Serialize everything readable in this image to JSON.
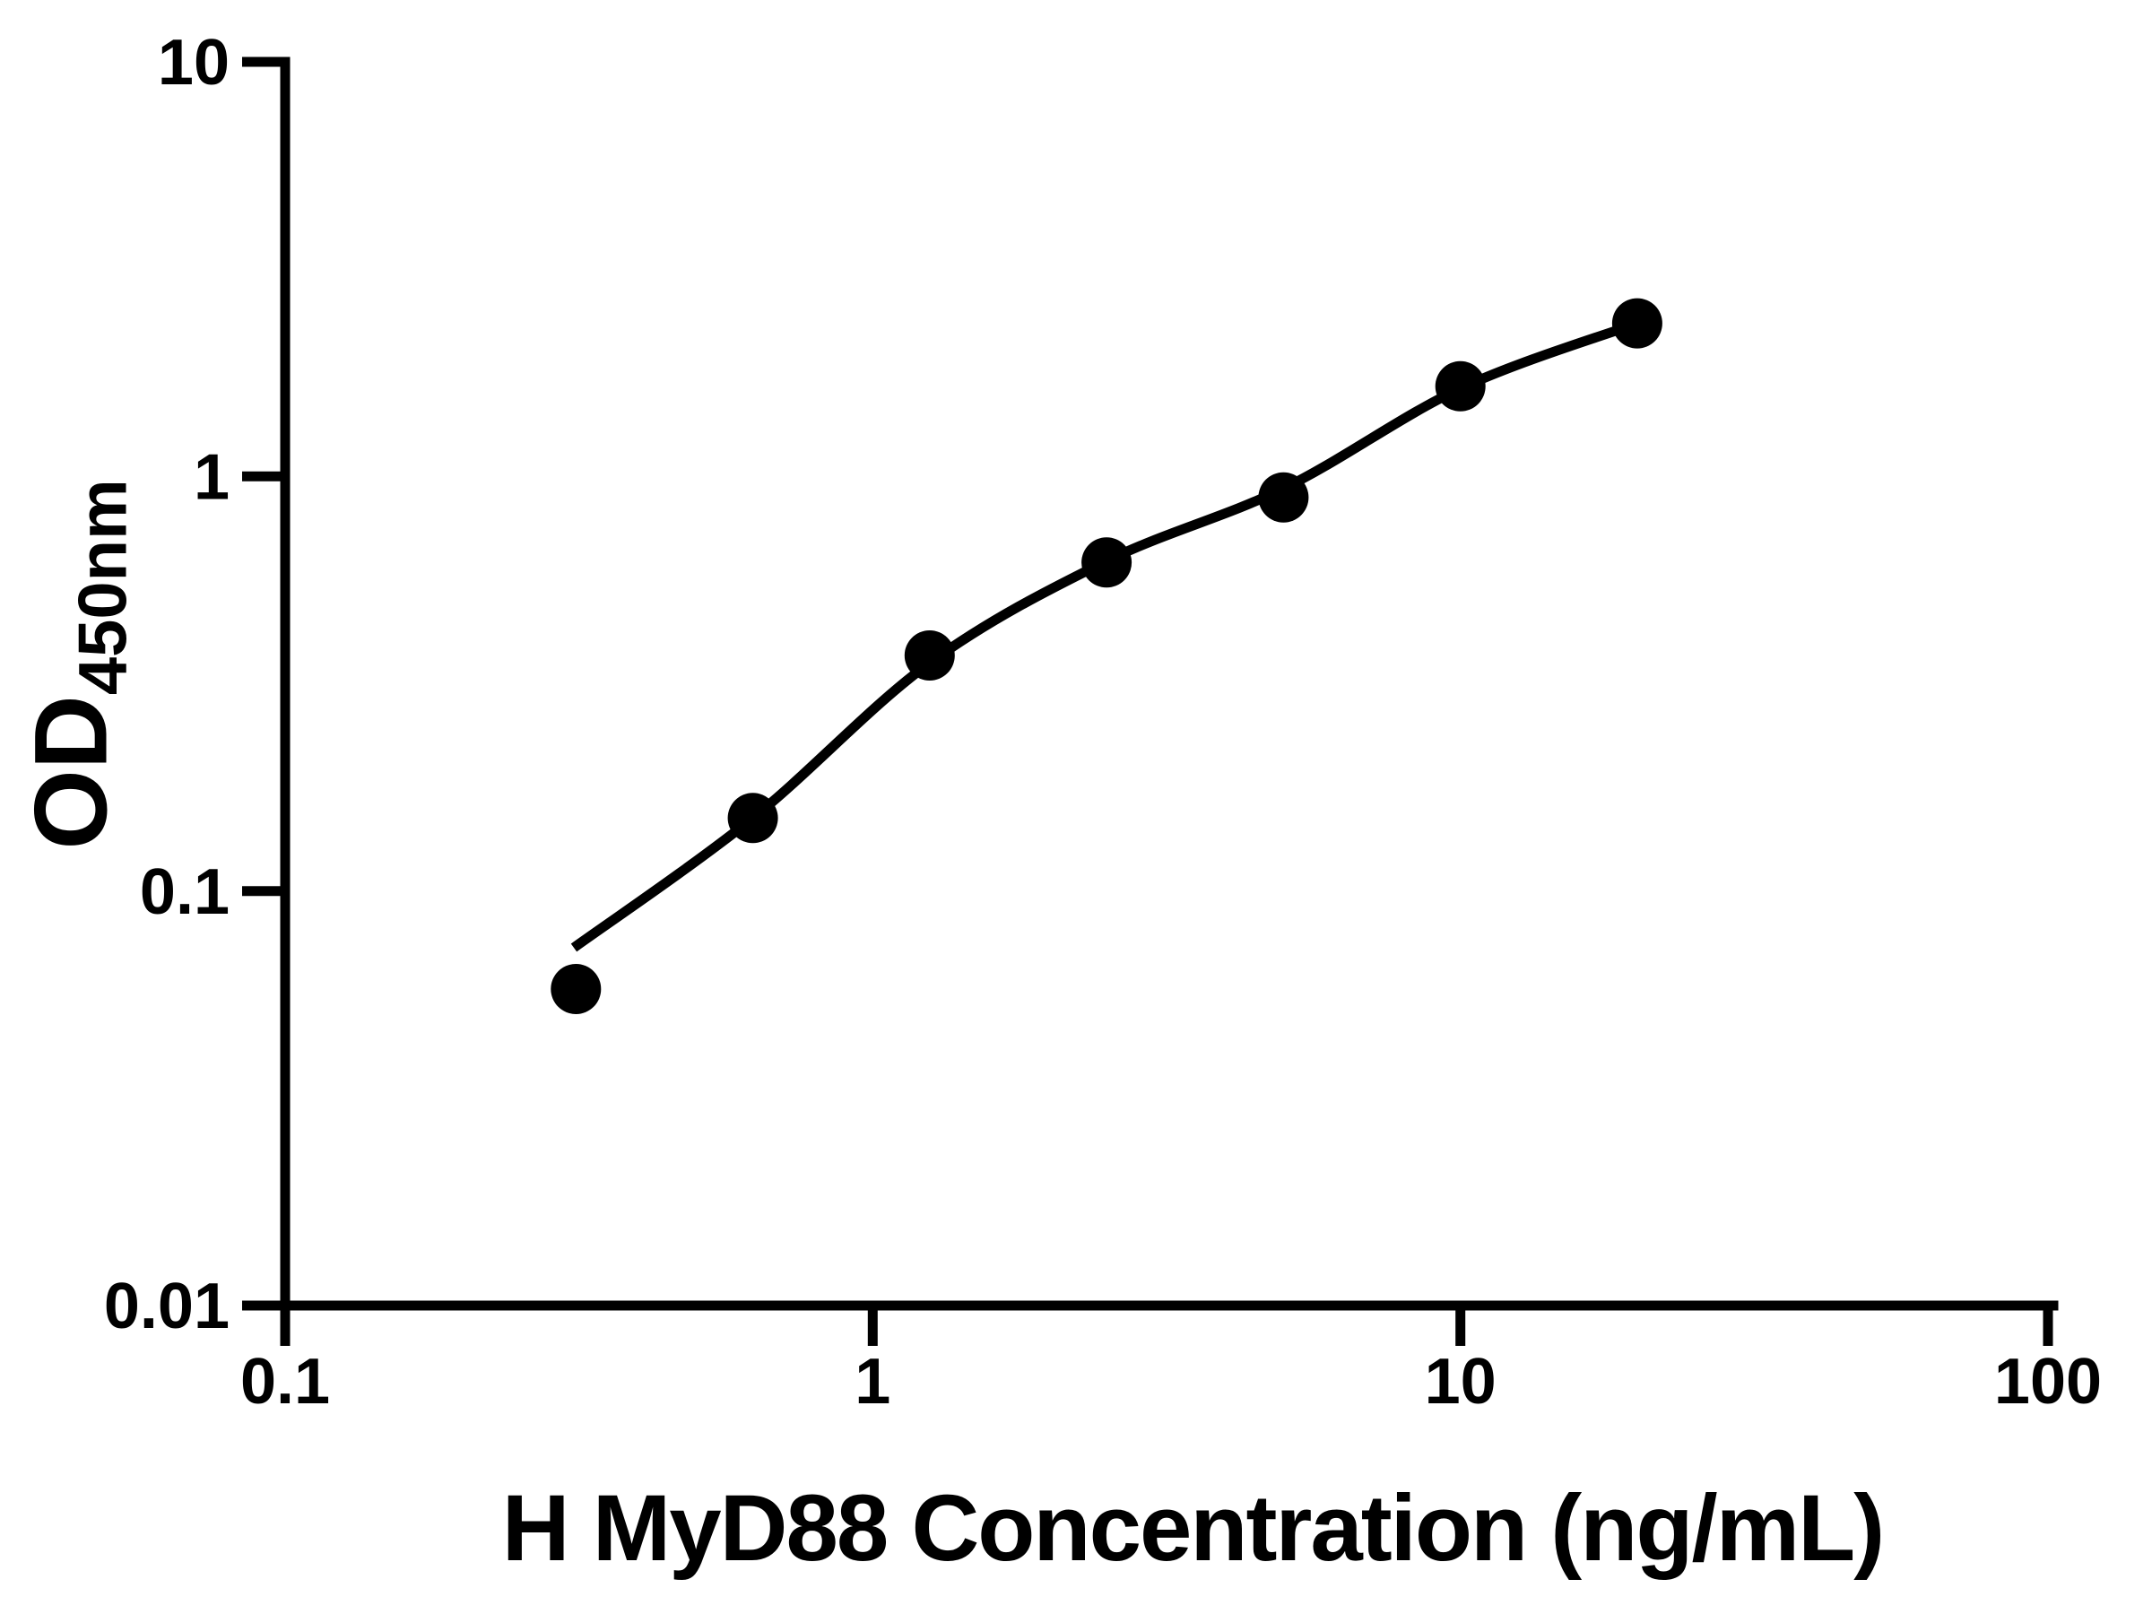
{
  "chart_data": {
    "type": "scatter",
    "xlabel": "H MyD88 Concentration (ng/mL)",
    "ylabel_main": "OD",
    "ylabel_sub": "450nm",
    "x_scale": "log",
    "y_scale": "log",
    "xlim": [
      0.1,
      100
    ],
    "ylim": [
      0.01,
      10
    ],
    "grid": false,
    "legend": "none",
    "x_ticks": [
      {
        "value": 0.1,
        "label": "0.1"
      },
      {
        "value": 1,
        "label": "1"
      },
      {
        "value": 10,
        "label": "10"
      },
      {
        "value": 100,
        "label": "100"
      }
    ],
    "y_ticks": [
      {
        "value": 0.01,
        "label": "0.01"
      },
      {
        "value": 0.1,
        "label": "0.1"
      },
      {
        "value": 1,
        "label": "1"
      },
      {
        "value": 10,
        "label": "10"
      }
    ],
    "points": [
      {
        "x": 0.3125,
        "y": 0.058
      },
      {
        "x": 0.625,
        "y": 0.15
      },
      {
        "x": 1.25,
        "y": 0.37
      },
      {
        "x": 2.5,
        "y": 0.62
      },
      {
        "x": 5,
        "y": 0.89
      },
      {
        "x": 10,
        "y": 1.65
      },
      {
        "x": 20,
        "y": 2.34
      }
    ],
    "curve": [
      {
        "x": 0.31,
        "y": 0.073
      },
      {
        "x": 0.625,
        "y": 0.15
      },
      {
        "x": 1.25,
        "y": 0.355
      },
      {
        "x": 2.5,
        "y": 0.625
      },
      {
        "x": 5,
        "y": 0.935
      },
      {
        "x": 10,
        "y": 1.63
      },
      {
        "x": 20,
        "y": 2.34
      }
    ],
    "marker_color": "#000000",
    "line_color": "#000000",
    "axis_color": "#000000",
    "text_color": "#000000",
    "background_color": "#ffffff"
  }
}
